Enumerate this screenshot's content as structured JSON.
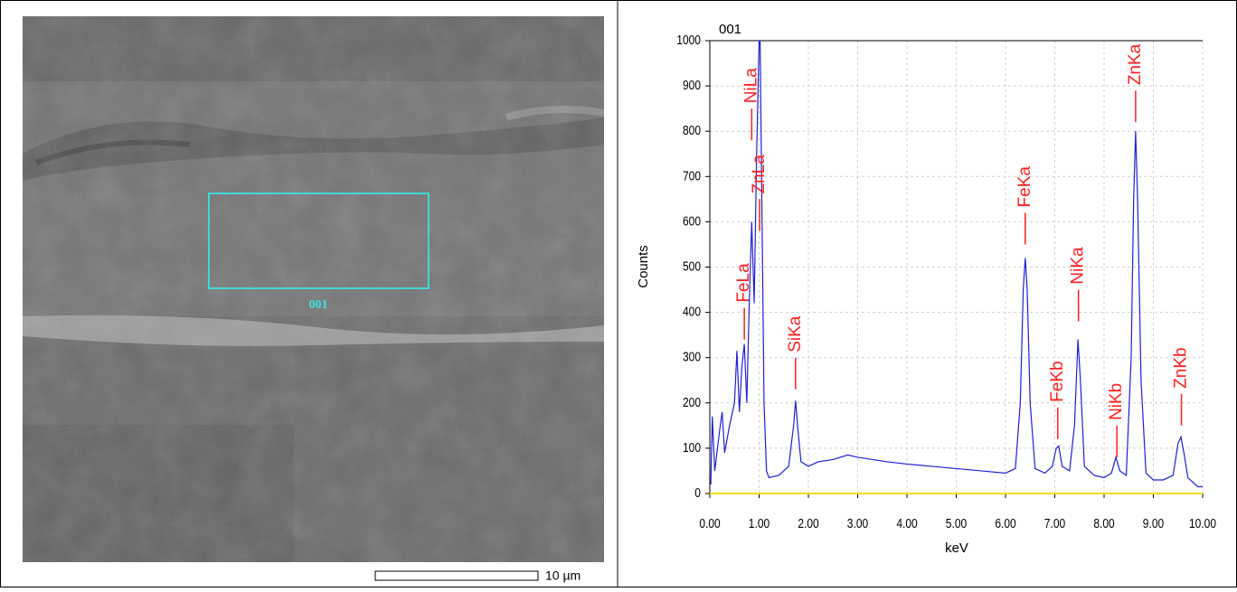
{
  "image_panel": {
    "region_label": "001",
    "scale_bar": "10 µm"
  },
  "chart_data": {
    "type": "line",
    "title": "001",
    "x_label": "keV",
    "y_label": "Counts",
    "xlim": [
      0,
      10
    ],
    "ylim": [
      0,
      1000
    ],
    "xticks": [
      {
        "value": 0,
        "label": "0.00"
      },
      {
        "value": 1,
        "label": "1.00"
      },
      {
        "value": 2,
        "label": "2.00"
      },
      {
        "value": 3,
        "label": "3.00"
      },
      {
        "value": 4,
        "label": "4.00"
      },
      {
        "value": 5,
        "label": "5.00"
      },
      {
        "value": 6,
        "label": "6.00"
      },
      {
        "value": 7,
        "label": "7.00"
      },
      {
        "value": 8,
        "label": "8.00"
      },
      {
        "value": 9,
        "label": "9.00"
      },
      {
        "value": 10,
        "label": "10.00"
      }
    ],
    "yticks": [
      0,
      100,
      200,
      300,
      400,
      500,
      600,
      700,
      800,
      900,
      1000
    ],
    "grid": true,
    "x": [
      0.02,
      0.05,
      0.1,
      0.2,
      0.25,
      0.3,
      0.4,
      0.5,
      0.55,
      0.6,
      0.65,
      0.7,
      0.75,
      0.8,
      0.85,
      0.9,
      0.95,
      1.0,
      1.02,
      1.06,
      1.1,
      1.15,
      1.2,
      1.4,
      1.6,
      1.7,
      1.74,
      1.78,
      1.85,
      2.0,
      2.2,
      2.5,
      2.8,
      3.0,
      3.3,
      3.6,
      4.0,
      4.5,
      5.0,
      5.5,
      6.0,
      6.2,
      6.3,
      6.36,
      6.4,
      6.44,
      6.5,
      6.6,
      6.8,
      6.95,
      7.03,
      7.08,
      7.15,
      7.3,
      7.4,
      7.47,
      7.52,
      7.6,
      7.8,
      8.0,
      8.15,
      8.24,
      8.32,
      8.45,
      8.55,
      8.6,
      8.64,
      8.68,
      8.75,
      8.85,
      9.0,
      9.2,
      9.4,
      9.5,
      9.56,
      9.62,
      9.7,
      9.9,
      10.0
    ],
    "series": [
      {
        "color": "#2020d8",
        "values": [
          20,
          170,
          50,
          140,
          180,
          90,
          150,
          200,
          315,
          180,
          280,
          330,
          200,
          420,
          600,
          420,
          750,
          1000,
          1000,
          600,
          200,
          50,
          35,
          40,
          60,
          150,
          205,
          150,
          70,
          60,
          70,
          75,
          85,
          80,
          75,
          70,
          65,
          60,
          55,
          50,
          45,
          55,
          200,
          450,
          520,
          450,
          200,
          55,
          45,
          60,
          100,
          105,
          60,
          50,
          150,
          340,
          250,
          60,
          40,
          35,
          45,
          80,
          50,
          40,
          300,
          650,
          800,
          650,
          250,
          45,
          30,
          30,
          40,
          110,
          125,
          90,
          35,
          15,
          15
        ]
      }
    ],
    "annotation_color": "#ff2020",
    "annotations": [
      {
        "text": "FeLa",
        "x": 0.7,
        "y": 340
      },
      {
        "text": "NiLa",
        "x": 0.85,
        "y": 780
      },
      {
        "text": "ZnLa",
        "x": 1.01,
        "y": 580
      },
      {
        "text": "SiKa",
        "x": 1.74,
        "y": 230
      },
      {
        "text": "FeKa",
        "x": 6.4,
        "y": 550
      },
      {
        "text": "FeKb",
        "x": 7.06,
        "y": 120
      },
      {
        "text": "NiKa",
        "x": 7.48,
        "y": 380
      },
      {
        "text": "NiKb",
        "x": 8.26,
        "y": 80
      },
      {
        "text": "ZnKa",
        "x": 8.64,
        "y": 820
      },
      {
        "text": "ZnKb",
        "x": 9.57,
        "y": 150
      }
    ]
  }
}
